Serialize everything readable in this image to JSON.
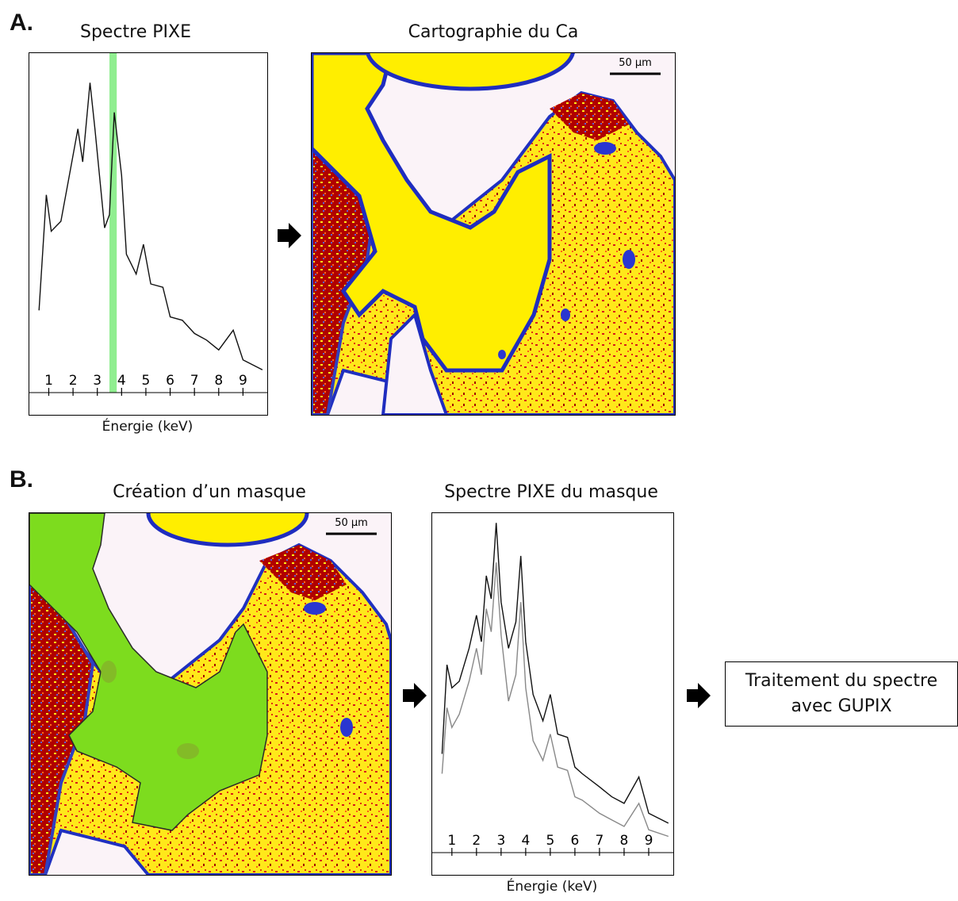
{
  "panel_a": {
    "label": "A.",
    "spectrum_title": "Spectre PIXE",
    "map_title": "Cartographie du Ca",
    "xlabel": "Énergie (keV)",
    "scale_bar": "50 µm"
  },
  "panel_b": {
    "label": "B.",
    "mask_title": "Création d’un masque",
    "spectrum_title": "Spectre PIXE du masque",
    "xlabel": "Énergie (keV)",
    "scale_bar": "50 µm",
    "result_line1": "Traitement du spectre",
    "result_line2": "avec GUPIX"
  },
  "colors": {
    "highlight": "#90ee90",
    "mask": "#7ddc1e",
    "map_yellow": "#ffee00",
    "map_red": "#b30000",
    "map_blue": "#2233cc"
  },
  "chart_data": [
    {
      "type": "line",
      "x": [
        0.6,
        0.9,
        1.1,
        1.5,
        1.8,
        2.2,
        2.4,
        2.7,
        2.9,
        3.3,
        3.5,
        3.7,
        4.0,
        4.2,
        4.6,
        4.9,
        5.2,
        5.7,
        6.0,
        6.5,
        7.0,
        7.5,
        8.0,
        8.6,
        9.0,
        9.8
      ],
      "y": [
        0.23,
        0.58,
        0.47,
        0.5,
        0.62,
        0.78,
        0.68,
        0.92,
        0.78,
        0.48,
        0.52,
        0.83,
        0.64,
        0.4,
        0.34,
        0.43,
        0.31,
        0.3,
        0.21,
        0.2,
        0.16,
        0.14,
        0.11,
        0.17,
        0.08,
        0.05
      ],
      "highlight_x": [
        3.5,
        3.8
      ],
      "xticks": [
        "1",
        "2",
        "3",
        "4",
        "5",
        "6",
        "7",
        "8",
        "9"
      ],
      "xlabel": "Énergie (keV)"
    },
    {
      "type": "line",
      "x": [
        0.6,
        0.8,
        1.0,
        1.3,
        1.7,
        2.0,
        2.2,
        2.4,
        2.6,
        2.8,
        3.0,
        3.3,
        3.6,
        3.8,
        4.0,
        4.3,
        4.7,
        5.0,
        5.3,
        5.7,
        6.0,
        6.3,
        7.0,
        7.5,
        8.0,
        8.6,
        9.0,
        9.8
      ],
      "series": [
        {
          "y": [
            0.28,
            0.55,
            0.48,
            0.5,
            0.6,
            0.7,
            0.62,
            0.82,
            0.75,
            0.98,
            0.74,
            0.6,
            0.68,
            0.88,
            0.62,
            0.46,
            0.38,
            0.46,
            0.34,
            0.33,
            0.24,
            0.22,
            0.18,
            0.15,
            0.13,
            0.21,
            0.1,
            0.07
          ]
        },
        {
          "y": [
            0.22,
            0.42,
            0.36,
            0.4,
            0.5,
            0.6,
            0.52,
            0.72,
            0.65,
            0.86,
            0.64,
            0.44,
            0.52,
            0.74,
            0.48,
            0.32,
            0.26,
            0.34,
            0.24,
            0.23,
            0.15,
            0.14,
            0.1,
            0.08,
            0.06,
            0.13,
            0.05,
            0.03
          ]
        }
      ],
      "xticks": [
        "1",
        "2",
        "3",
        "4",
        "5",
        "6",
        "7",
        "8",
        "9"
      ],
      "xlabel": "Énergie (keV)"
    }
  ]
}
